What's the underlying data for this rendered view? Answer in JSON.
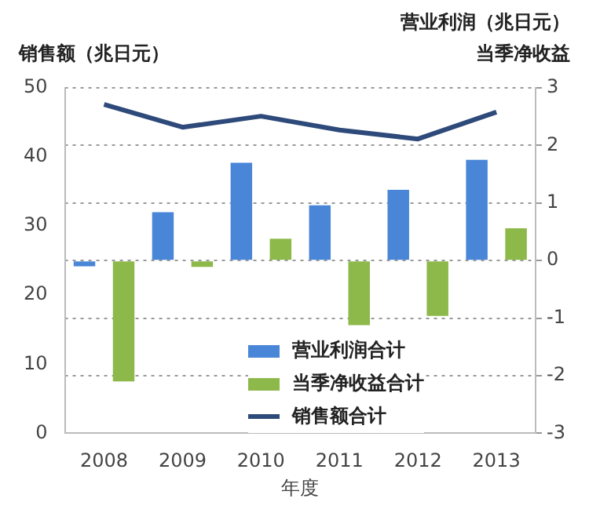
{
  "chart_data": {
    "type": "bar",
    "ylabel": "销售额（兆日元）",
    "y2label": "营业利润（兆日元）当季净收益",
    "xlabel": "年度",
    "categories": [
      "2008",
      "2009",
      "2010",
      "2011",
      "2012",
      "2013"
    ],
    "series": [
      {
        "name": "营业利润合计",
        "axis": "y2",
        "color": "#4a86d8",
        "values": [
          -0.1,
          0.84,
          1.7,
          0.96,
          1.23,
          1.75
        ]
      },
      {
        "name": "当季净收益合计",
        "axis": "y2",
        "color": "#8db84a",
        "values": [
          -2.1,
          -0.11,
          0.38,
          -1.12,
          -0.96,
          0.56
        ]
      },
      {
        "name": "销售额合计",
        "type": "line",
        "axis": "y",
        "color": "#2e4a7a",
        "values": [
          47.6,
          44.3,
          45.9,
          43.9,
          42.6,
          46.5
        ]
      }
    ],
    "ylim": [
      0,
      50
    ],
    "yticks": [
      0,
      10,
      20,
      30,
      40,
      50
    ],
    "y2lim": [
      -3,
      3
    ],
    "y2ticks": [
      -3,
      -2,
      -1,
      0,
      1,
      2,
      3
    ],
    "grid": true,
    "legend": "bottom",
    "marker": "none",
    "line_style": "solid"
  }
}
